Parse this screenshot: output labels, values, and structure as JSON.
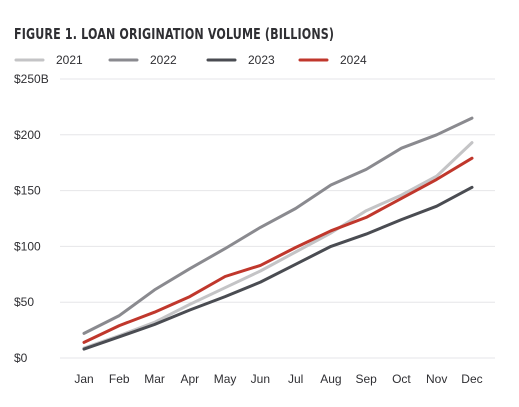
{
  "chart_data": {
    "type": "line",
    "title": "FIGURE 1. LOAN ORIGINATION VOLUME (BILLIONS)",
    "xlabel": "",
    "ylabel": "",
    "categories": [
      "Jan",
      "Feb",
      "Mar",
      "Apr",
      "May",
      "Jun",
      "Jul",
      "Aug",
      "Sep",
      "Oct",
      "Nov",
      "Dec"
    ],
    "ylim": [
      0,
      250
    ],
    "yticks": [
      0,
      50,
      100,
      150,
      200,
      250
    ],
    "ytick_labels": [
      "$0",
      "$50",
      "$100",
      "$150",
      "$200",
      "$250B"
    ],
    "grid": true,
    "legend_position": "top",
    "series": [
      {
        "name": "2021",
        "color": "#c4c4c6",
        "values": [
          9,
          20,
          32,
          48,
          63,
          78,
          95,
          112,
          132,
          146,
          163,
          193
        ]
      },
      {
        "name": "2022",
        "color": "#8a8a8f",
        "values": [
          22,
          38,
          61,
          80,
          98,
          117,
          134,
          155,
          169,
          188,
          200,
          215
        ]
      },
      {
        "name": "2023",
        "color": "#4a4c52",
        "values": [
          8,
          19,
          30,
          43,
          55,
          68,
          84,
          100,
          111,
          124,
          136,
          153
        ]
      },
      {
        "name": "2024",
        "color": "#c0372c",
        "values": [
          14,
          29,
          41,
          55,
          73,
          83,
          99,
          114,
          126,
          143,
          160,
          179
        ]
      }
    ]
  }
}
